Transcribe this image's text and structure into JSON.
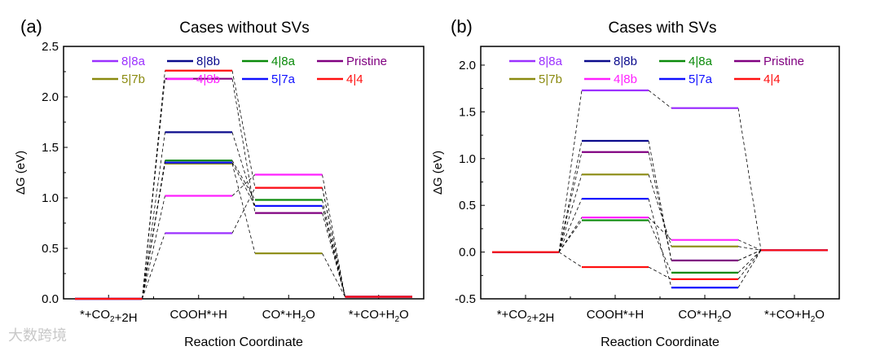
{
  "watermark": "大数跨境",
  "chart_data": [
    {
      "type": "energy-diagram",
      "panel_label": "(a)",
      "title": "Cases without SVs",
      "xlabel": "Reaction Coordinate",
      "ylabel": "ΔG (eV)",
      "ylim": [
        0,
        2.5
      ],
      "yticks": [
        "0.0",
        "0.5",
        "1.0",
        "1.5",
        "2.0",
        "2.5"
      ],
      "categories": [
        "*+CO2+2H",
        "COOH*+H",
        "CO*+H2O",
        "*+CO+H2O"
      ],
      "legend_position": "top",
      "series": [
        {
          "name": "8|8a",
          "color": "#9b30ff",
          "values": [
            0,
            0.65,
            1.1,
            0.02
          ]
        },
        {
          "name": "8|8b",
          "color": "#0a0a8c",
          "values": [
            0,
            1.65,
            0.92,
            0.02
          ]
        },
        {
          "name": "4|8a",
          "color": "#0a8a0a",
          "values": [
            0,
            1.37,
            0.98,
            0.02
          ]
        },
        {
          "name": "Pristine",
          "color": "#800080",
          "values": [
            0,
            2.18,
            0.85,
            0.02
          ]
        },
        {
          "name": "5|7b",
          "color": "#8a8a10",
          "values": [
            0,
            1.34,
            0.45,
            0.02
          ]
        },
        {
          "name": "4|8b",
          "color": "#ff20ff",
          "values": [
            0,
            1.02,
            1.23,
            0.02
          ]
        },
        {
          "name": "5|7a",
          "color": "#1010ff",
          "values": [
            0,
            1.35,
            0.92,
            0.02
          ]
        },
        {
          "name": "4|4",
          "color": "#ff1010",
          "values": [
            0,
            2.26,
            1.1,
            0.02
          ]
        }
      ]
    },
    {
      "type": "energy-diagram",
      "panel_label": "(b)",
      "title": "Cases with SVs",
      "xlabel": "Reaction Coordinate",
      "ylabel": "ΔG (eV)",
      "ylim": [
        -0.5,
        2.2
      ],
      "yticks": [
        "-0.5",
        "0.0",
        "0.5",
        "1.0",
        "1.5",
        "2.0"
      ],
      "categories": [
        "*+CO2+2H",
        "COOH*+H",
        "CO*+H2O",
        "*+CO+H2O"
      ],
      "legend_position": "top",
      "series": [
        {
          "name": "8|8a",
          "color": "#9b30ff",
          "values": [
            0,
            1.73,
            1.54,
            0.02
          ]
        },
        {
          "name": "8|8b",
          "color": "#0a0a8c",
          "values": [
            0,
            1.19,
            -0.09,
            0.02
          ]
        },
        {
          "name": "4|8a",
          "color": "#0a8a0a",
          "values": [
            0,
            0.34,
            -0.22,
            0.02
          ]
        },
        {
          "name": "Pristine",
          "color": "#800080",
          "values": [
            0,
            1.07,
            -0.09,
            0.02
          ]
        },
        {
          "name": "5|7b",
          "color": "#8a8a10",
          "values": [
            0,
            0.83,
            0.06,
            0.02
          ]
        },
        {
          "name": "4|8b",
          "color": "#ff20ff",
          "values": [
            0,
            0.37,
            0.13,
            0.02
          ]
        },
        {
          "name": "5|7a",
          "color": "#1010ff",
          "values": [
            0,
            0.57,
            -0.38,
            0.02
          ]
        },
        {
          "name": "4|4",
          "color": "#ff1010",
          "values": [
            0,
            -0.16,
            -0.29,
            0.02
          ]
        }
      ]
    }
  ]
}
